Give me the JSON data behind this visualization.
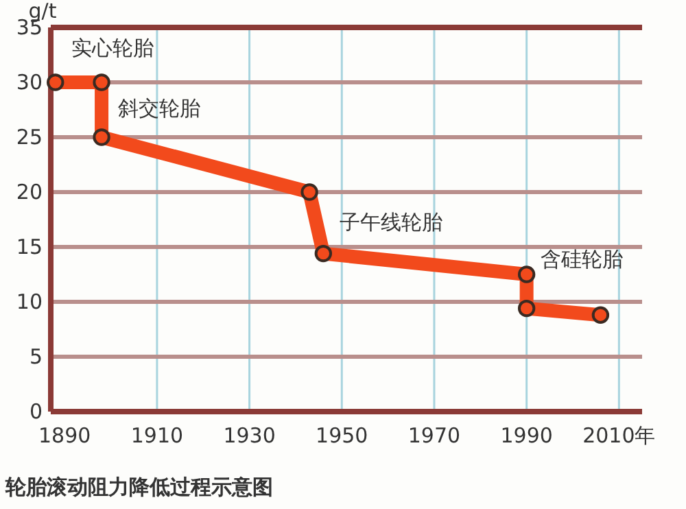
{
  "chart_data": {
    "type": "line",
    "title": "轮胎滚动阻力降低过程示意图",
    "ylabel": "g/t",
    "x": [
      1888,
      1898,
      1898,
      1943,
      1946,
      1990,
      1990,
      2006
    ],
    "series": [
      {
        "color": "#f24a1c",
        "values": [
          30,
          30,
          25,
          20,
          14.4,
          12.5,
          9.4,
          8.8
        ]
      }
    ],
    "xlim": [
      1887,
      2015
    ],
    "xticks": [
      1890,
      1910,
      1930,
      1950,
      1970,
      1990,
      {
        "value": 2010,
        "label": "2010年"
      }
    ],
    "ylim": [
      0,
      35
    ],
    "yticks": [
      0,
      5,
      10,
      15,
      20,
      25,
      30,
      35
    ],
    "grid": true,
    "marker": "circle",
    "line_style": "solid",
    "annotations": [
      {
        "text": "实心轮胎",
        "x": 1898,
        "y": 30
      },
      {
        "text": "斜交轮胎",
        "x": 1898,
        "y": 25
      },
      {
        "text": "子午线轮胎",
        "x": 1946,
        "y": 14.4
      },
      {
        "text": "含硅轮胎",
        "x": 1990,
        "y": 12.5
      }
    ]
  }
}
